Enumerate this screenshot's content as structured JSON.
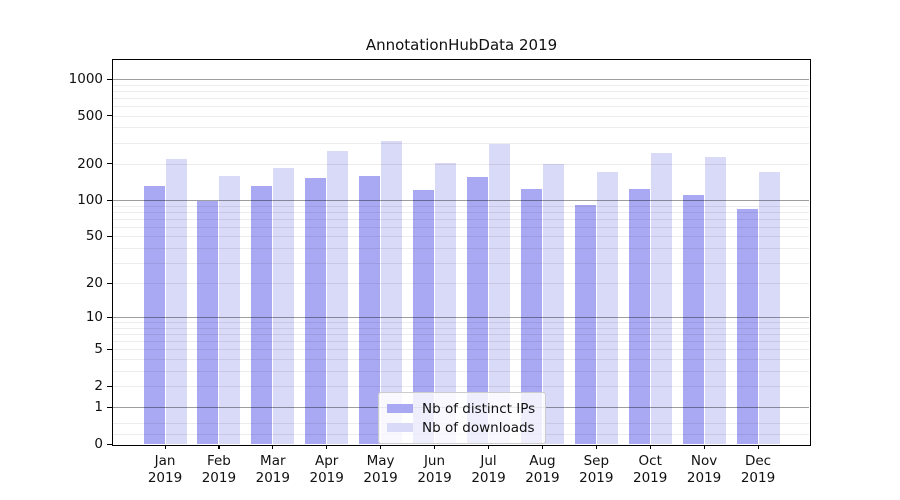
{
  "chart_data": {
    "type": "bar",
    "title": "AnnotationHubData 2019",
    "xlabel": "",
    "ylabel": "",
    "year_suffix": "2019",
    "categories": [
      "Jan",
      "Feb",
      "Mar",
      "Apr",
      "May",
      "Jun",
      "Jul",
      "Aug",
      "Sep",
      "Oct",
      "Nov",
      "Dec"
    ],
    "series": [
      {
        "name": "Nb of distinct IPs",
        "color": "#a9a9f3",
        "values": [
          130,
          98,
          130,
          153,
          160,
          122,
          157,
          123,
          92,
          125,
          110,
          85
        ]
      },
      {
        "name": "Nb of downloads",
        "color": "#d9d9f8",
        "values": [
          221,
          159,
          186,
          255,
          306,
          203,
          290,
          200,
          170,
          244,
          228,
          172
        ]
      }
    ],
    "y_scale": "log1p",
    "ylim": [
      0,
      1400
    ],
    "y_ticks": [
      0,
      1,
      2,
      5,
      10,
      20,
      50,
      100,
      200,
      500,
      1000
    ],
    "grid": {
      "major": [
        1,
        10,
        100,
        1000
      ],
      "minor": [
        0.2,
        0.5,
        2,
        3,
        4,
        5,
        6,
        7,
        8,
        9,
        20,
        30,
        40,
        50,
        60,
        70,
        80,
        90,
        200,
        300,
        400,
        500,
        600,
        700,
        800,
        900
      ]
    },
    "legend_position": "lower center",
    "colors": {
      "axis": "#000000",
      "text": "#111111"
    }
  }
}
